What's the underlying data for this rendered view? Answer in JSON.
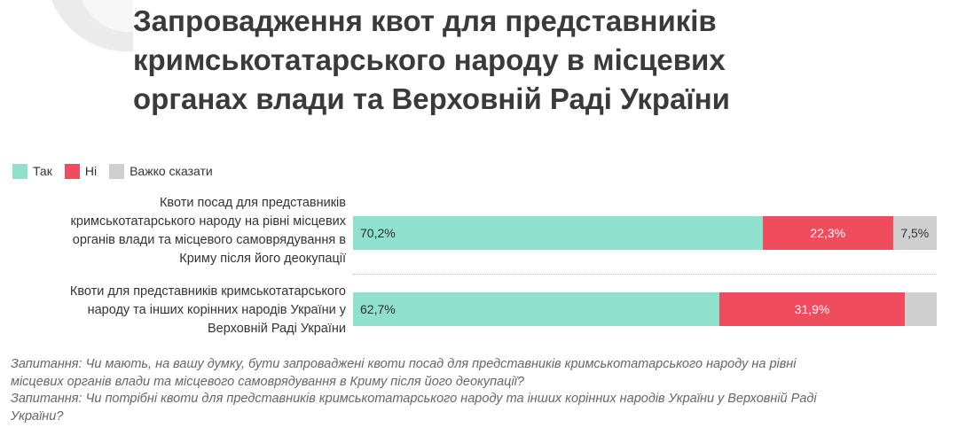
{
  "title_lines": [
    "Запровадження квот для представників",
    "кримськотатарського народу в місцевих",
    "органах влади та Верховній Раді України"
  ],
  "legend": [
    {
      "label": "Так",
      "color": "#8fe0cc"
    },
    {
      "label": "Ні",
      "color": "#ef4c5e"
    },
    {
      "label": "Важко сказати",
      "color": "#cfcfcf"
    }
  ],
  "chart_data": {
    "type": "bar",
    "orientation": "horizontal",
    "stacked": true,
    "scale_max": 100,
    "categories": [
      "Квоти посад для представників кримськотатарського народу на рівні місцевих органів влади та місцевого самоврядування в Криму після його деокупації",
      "Квоти для представників кримськотатарського народу та інших корінних народів України у Верховній Раді України"
    ],
    "category_lines": [
      [
        "Квоти посад для представників",
        "кримськотатарського народу на рівні місцевих",
        "органів влади та місцевого самоврядування в",
        "Криму після його деокупації"
      ],
      [
        "Квоти для представників кримськотатарського",
        "народу та інших корінних народів України у",
        "Верховній Раді України"
      ]
    ],
    "series": [
      {
        "name": "Так",
        "values": [
          70.2,
          62.7
        ],
        "labels": [
          "70,2%",
          "62,7%"
        ]
      },
      {
        "name": "Ні",
        "values": [
          22.3,
          31.9
        ],
        "labels": [
          "22,3%",
          "31,9%"
        ]
      },
      {
        "name": "Важко сказати",
        "values": [
          7.5,
          5.4
        ],
        "labels": [
          "7,5%",
          ""
        ]
      }
    ]
  },
  "notes": [
    "Запитання: Чи мають, на вашу думку, бути запроваджені квоти посад для представників кримськотатарського народу на рівні",
    "місцевих органів влади та місцевого самоврядування в Криму після його деокупації?",
    "Запитання: Чи потрібні квоти для представників кримськотатарського народу та інших корінних народів України у Верховній Раді",
    "України?"
  ]
}
